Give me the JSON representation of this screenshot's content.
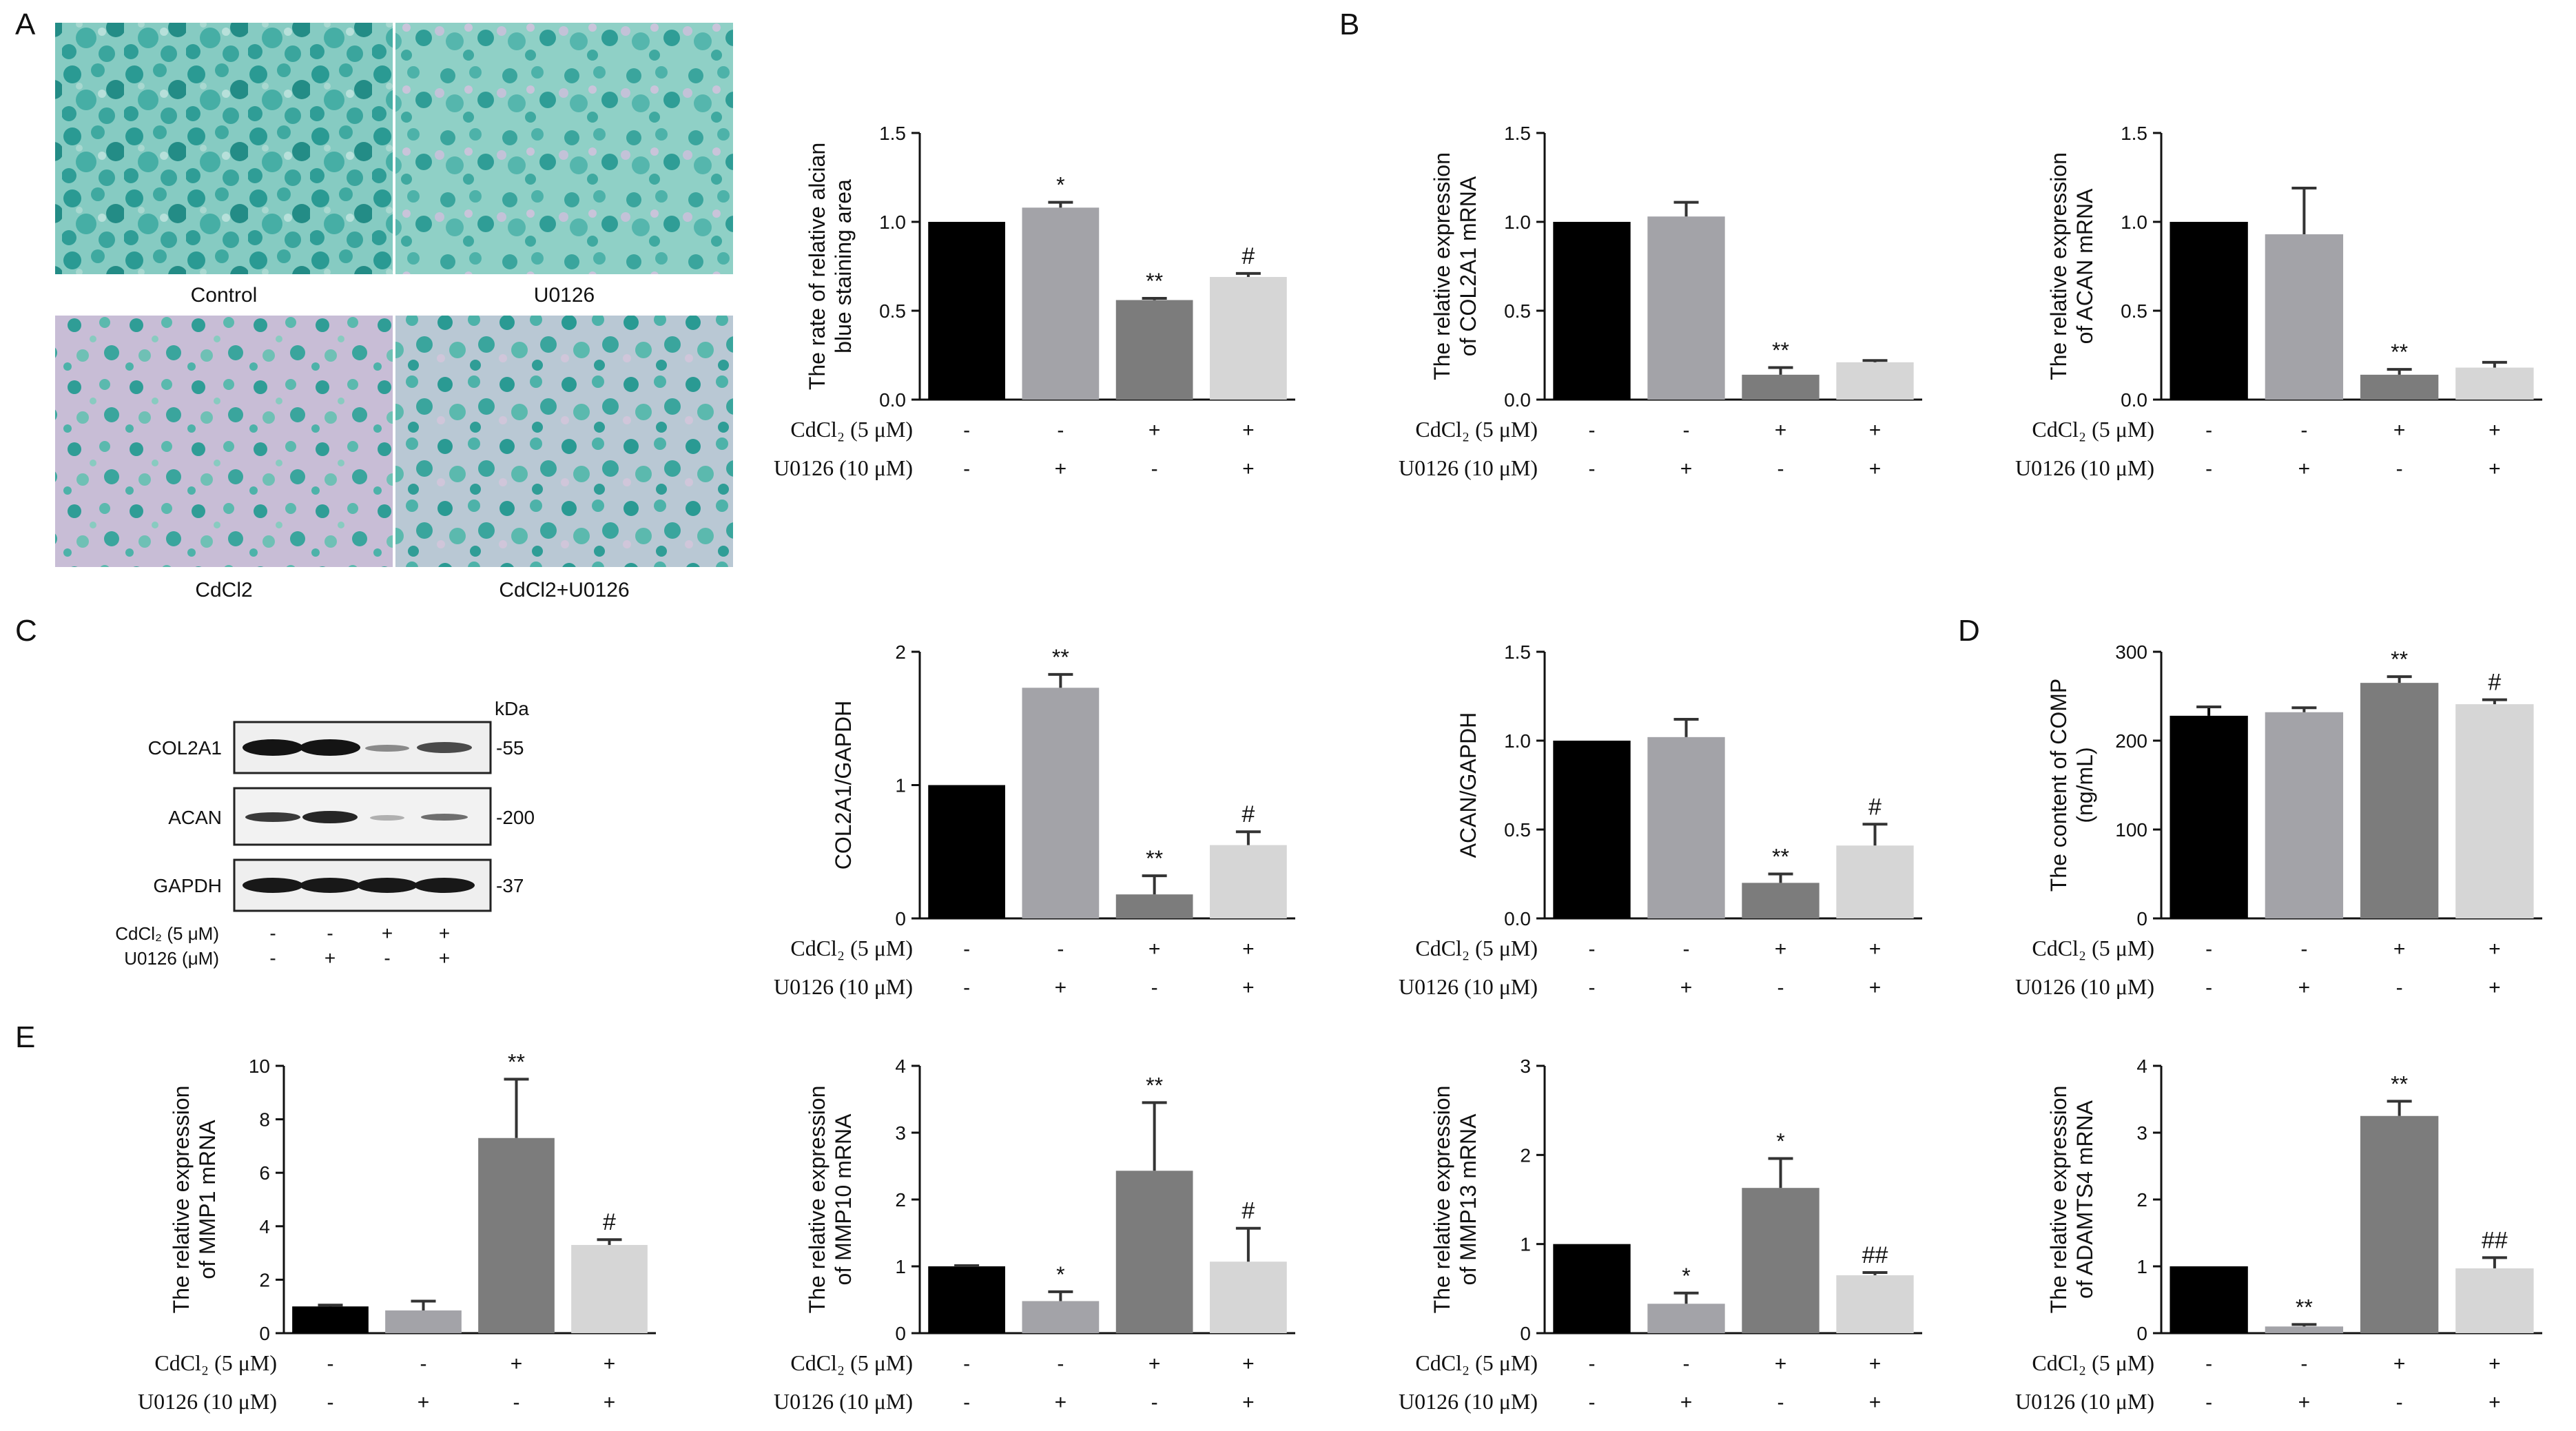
{
  "panel_labels": [
    "A",
    "B",
    "C",
    "D",
    "E"
  ],
  "micrographs": {
    "labels": [
      "Control",
      "U0126",
      "CdCl2",
      "CdCl2+U0126"
    ]
  },
  "colors": {
    "control": "#000000",
    "u0126": "#a3a3a8",
    "cdcl2": "#7c7c7c",
    "combo": "#d6d6d6",
    "stain_dark": "#1f8f8a",
    "stain_light": "#7fc7bd",
    "background_tissue": "#c9bcd6"
  },
  "treatment_rows": {
    "cdcl2_label": "CdCl₂ (5 μM)",
    "u0126_label": "U0126 (10 μM)",
    "cdcl2_signs": [
      "-",
      "-",
      "+",
      "+"
    ],
    "u0126_signs": [
      "-",
      "+",
      "-",
      "+"
    ]
  },
  "western_blot": {
    "kda_label": "kDa",
    "rows": [
      {
        "protein": "COL2A1",
        "kda": "-55"
      },
      {
        "protein": "ACAN",
        "kda": "-200"
      },
      {
        "protein": "GAPDH",
        "kda": "-37"
      }
    ],
    "cdcl2_label": "CdCl₂ (5 μM)",
    "u0126_label": "U0126 (μM)",
    "cdcl2_signs": [
      "-",
      "-",
      "+",
      "+"
    ],
    "u0126_signs": [
      "-",
      "+",
      "-",
      "+"
    ]
  },
  "chart_data": [
    {
      "id": "alcian",
      "type": "bar",
      "ylabel_lines": [
        "The rate of relative alcian",
        "blue staining area"
      ],
      "ylim": [
        0,
        1.5
      ],
      "ticks": [
        "0.0",
        "0.5",
        "1.0",
        "1.5"
      ],
      "values": [
        1.0,
        1.08,
        0.56,
        0.69
      ],
      "errors": [
        0,
        0.03,
        0.01,
        0.02
      ],
      "marks": [
        "",
        "*",
        "**",
        "#"
      ]
    },
    {
      "id": "col2a1_mrna",
      "type": "bar",
      "ylabel_lines": [
        "The relative expression",
        "of COL2A1 mRNA"
      ],
      "ylim": [
        0,
        1.5
      ],
      "ticks": [
        "0.0",
        "0.5",
        "1.0",
        "1.5"
      ],
      "values": [
        1.0,
        1.03,
        0.14,
        0.21
      ],
      "errors": [
        0,
        0.08,
        0.04,
        0.01
      ],
      "marks": [
        "",
        "",
        "**",
        ""
      ]
    },
    {
      "id": "acan_mrna",
      "type": "bar",
      "ylabel_lines": [
        "The relative expression",
        "of ACAN mRNA"
      ],
      "ylim": [
        0,
        1.5
      ],
      "ticks": [
        "0.0",
        "0.5",
        "1.0",
        "1.5"
      ],
      "values": [
        1.0,
        0.93,
        0.14,
        0.18
      ],
      "errors": [
        0,
        0.26,
        0.03,
        0.03
      ],
      "marks": [
        "",
        "",
        "**",
        ""
      ]
    },
    {
      "id": "col2a1_gapdh",
      "type": "bar",
      "ylabel_lines": [
        "COL2A1/GAPDH"
      ],
      "ylim": [
        0,
        2
      ],
      "ticks": [
        "0",
        "1",
        "2"
      ],
      "values": [
        1.0,
        1.73,
        0.18,
        0.55
      ],
      "errors": [
        0,
        0.1,
        0.14,
        0.1
      ],
      "marks": [
        "",
        "**",
        "**",
        "#"
      ]
    },
    {
      "id": "acan_gapdh",
      "type": "bar",
      "ylabel_lines": [
        "ACAN/GAPDH"
      ],
      "ylim": [
        0,
        1.5
      ],
      "ticks": [
        "0.0",
        "0.5",
        "1.0",
        "1.5"
      ],
      "values": [
        1.0,
        1.02,
        0.2,
        0.41
      ],
      "errors": [
        0,
        0.1,
        0.05,
        0.12
      ],
      "marks": [
        "",
        "",
        "**",
        "#"
      ]
    },
    {
      "id": "comp",
      "type": "bar",
      "ylabel_lines": [
        "The content of COMP",
        "(ng/mL)"
      ],
      "ylim": [
        0,
        300
      ],
      "ticks": [
        "0",
        "100",
        "200",
        "300"
      ],
      "values": [
        228,
        232,
        265,
        241
      ],
      "errors": [
        10,
        5,
        7,
        5
      ],
      "marks": [
        "",
        "",
        "**",
        "#"
      ]
    },
    {
      "id": "mmp1",
      "type": "bar",
      "ylabel_lines": [
        "The relative expression",
        "of MMP1 mRNA"
      ],
      "ylim": [
        0,
        10
      ],
      "ticks": [
        "0",
        "2",
        "4",
        "6",
        "8",
        "10"
      ],
      "values": [
        1.0,
        0.85,
        7.3,
        3.3
      ],
      "errors": [
        0.05,
        0.35,
        2.2,
        0.2
      ],
      "marks": [
        "",
        "",
        "**",
        "#"
      ]
    },
    {
      "id": "mmp10",
      "type": "bar",
      "ylabel_lines": [
        "The relative expression",
        "of MMP10 mRNA"
      ],
      "ylim": [
        0,
        4
      ],
      "ticks": [
        "0",
        "1",
        "2",
        "3",
        "4"
      ],
      "values": [
        1.0,
        0.48,
        2.43,
        1.07
      ],
      "errors": [
        0.01,
        0.14,
        1.02,
        0.5
      ],
      "marks": [
        "",
        "*",
        "**",
        "#"
      ]
    },
    {
      "id": "mmp13",
      "type": "bar",
      "ylabel_lines": [
        "The relative expression",
        "of MMP13 mRNA"
      ],
      "ylim": [
        0,
        3
      ],
      "ticks": [
        "0",
        "1",
        "2",
        "3"
      ],
      "values": [
        1.0,
        0.33,
        1.63,
        0.65
      ],
      "errors": [
        0,
        0.12,
        0.33,
        0.03
      ],
      "marks": [
        "",
        "*",
        "*",
        "##"
      ]
    },
    {
      "id": "adamts4",
      "type": "bar",
      "ylabel_lines": [
        "The relative expression",
        "of ADAMTS4 mRNA"
      ],
      "ylim": [
        0,
        4
      ],
      "ticks": [
        "0",
        "1",
        "2",
        "3",
        "4"
      ],
      "values": [
        1.0,
        0.1,
        3.25,
        0.97
      ],
      "errors": [
        0,
        0.03,
        0.22,
        0.16
      ],
      "marks": [
        "",
        "**",
        "**",
        "##"
      ]
    }
  ]
}
